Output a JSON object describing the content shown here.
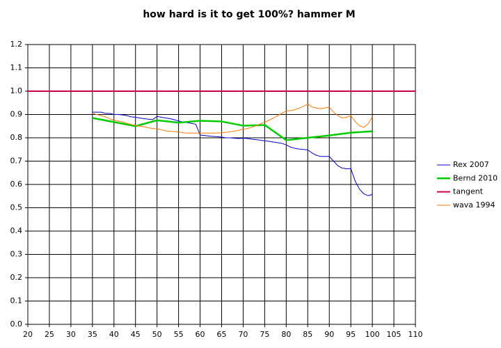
{
  "chart_data": {
    "type": "line",
    "title": "how hard is it to get 100%? hammer M",
    "xlim": [
      20,
      110
    ],
    "xticks": [
      20,
      25,
      30,
      35,
      40,
      45,
      50,
      55,
      60,
      65,
      70,
      75,
      80,
      85,
      90,
      95,
      100,
      105,
      110
    ],
    "ylim": [
      0,
      1.2
    ],
    "yticks": [
      {
        "value": 0,
        "label": "0.0"
      },
      0.1,
      0.2,
      0.3,
      0.4,
      0.5,
      0.6,
      0.7,
      0.8,
      0.9,
      {
        "value": 1,
        "label": "1.0"
      },
      1.1,
      1.2
    ],
    "grid": true,
    "legend": "right",
    "series": [
      {
        "name": "Rex 2007",
        "color": "#0000cc",
        "width": 1,
        "x": [
          35,
          36,
          37,
          38,
          39,
          40,
          41,
          42,
          43,
          44,
          45,
          46,
          47,
          48,
          49,
          50,
          51,
          52,
          53,
          54,
          55,
          56,
          57,
          58,
          59,
          60,
          61,
          62,
          63,
          64,
          65,
          66,
          67,
          68,
          69,
          70,
          71,
          72,
          73,
          74,
          75,
          76,
          77,
          78,
          79,
          80,
          81,
          82,
          83,
          84,
          85,
          86,
          87,
          88,
          89,
          90,
          91,
          92,
          93,
          94,
          95,
          96,
          97,
          98,
          99,
          100
        ],
        "values": [
          0.91,
          0.91,
          0.91,
          0.905,
          0.905,
          0.9,
          0.9,
          0.898,
          0.895,
          0.89,
          0.888,
          0.885,
          0.882,
          0.88,
          0.878,
          0.892,
          0.888,
          0.885,
          0.882,
          0.878,
          0.872,
          0.868,
          0.865,
          0.862,
          0.858,
          0.812,
          0.81,
          0.808,
          0.806,
          0.805,
          0.803,
          0.8,
          0.8,
          0.798,
          0.797,
          0.798,
          0.797,
          0.794,
          0.792,
          0.79,
          0.787,
          0.785,
          0.782,
          0.779,
          0.776,
          0.77,
          0.76,
          0.755,
          0.752,
          0.75,
          0.748,
          0.735,
          0.725,
          0.72,
          0.72,
          0.72,
          0.7,
          0.68,
          0.67,
          0.667,
          0.668,
          0.615,
          0.58,
          0.56,
          0.552,
          0.557
        ]
      },
      {
        "name": "Bernd 2010",
        "color": "#00cc00",
        "width": 2.5,
        "x": [
          35,
          45,
          50,
          55,
          60,
          65,
          70,
          75,
          80,
          85,
          90,
          95,
          100
        ],
        "values": [
          0.885,
          0.85,
          0.875,
          0.865,
          0.873,
          0.87,
          0.852,
          0.855,
          0.79,
          0.8,
          0.81,
          0.822,
          0.828
        ]
      },
      {
        "name": "tangent",
        "color": "#cc0044",
        "width": 2,
        "x": [
          20,
          110
        ],
        "values": [
          1,
          1
        ]
      },
      {
        "name": "wava 1994",
        "color": "#ff7700",
        "width": 1,
        "x": [
          35,
          36,
          37,
          38,
          39,
          40,
          41,
          42,
          43,
          44,
          45,
          46,
          47,
          48,
          49,
          50,
          51,
          52,
          53,
          54,
          55,
          56,
          57,
          58,
          59,
          60,
          61,
          62,
          63,
          64,
          65,
          66,
          67,
          68,
          69,
          70,
          71,
          72,
          73,
          74,
          75,
          76,
          77,
          78,
          79,
          80,
          81,
          82,
          83,
          84,
          85,
          86,
          87,
          88,
          89,
          90,
          91,
          92,
          93,
          94,
          95,
          96,
          97,
          98,
          99,
          100
        ],
        "values": [
          0.905,
          0.9,
          0.895,
          0.89,
          0.882,
          0.875,
          0.872,
          0.868,
          0.862,
          0.857,
          0.853,
          0.85,
          0.847,
          0.843,
          0.84,
          0.838,
          0.835,
          0.83,
          0.828,
          0.827,
          0.825,
          0.822,
          0.82,
          0.82,
          0.82,
          0.82,
          0.82,
          0.82,
          0.82,
          0.821,
          0.822,
          0.823,
          0.826,
          0.829,
          0.832,
          0.837,
          0.84,
          0.845,
          0.852,
          0.86,
          0.867,
          0.875,
          0.885,
          0.895,
          0.905,
          0.915,
          0.917,
          0.92,
          0.927,
          0.935,
          0.945,
          0.932,
          0.928,
          0.925,
          0.928,
          0.932,
          0.91,
          0.895,
          0.885,
          0.888,
          0.895,
          0.87,
          0.852,
          0.845,
          0.86,
          0.89
        ]
      }
    ]
  }
}
